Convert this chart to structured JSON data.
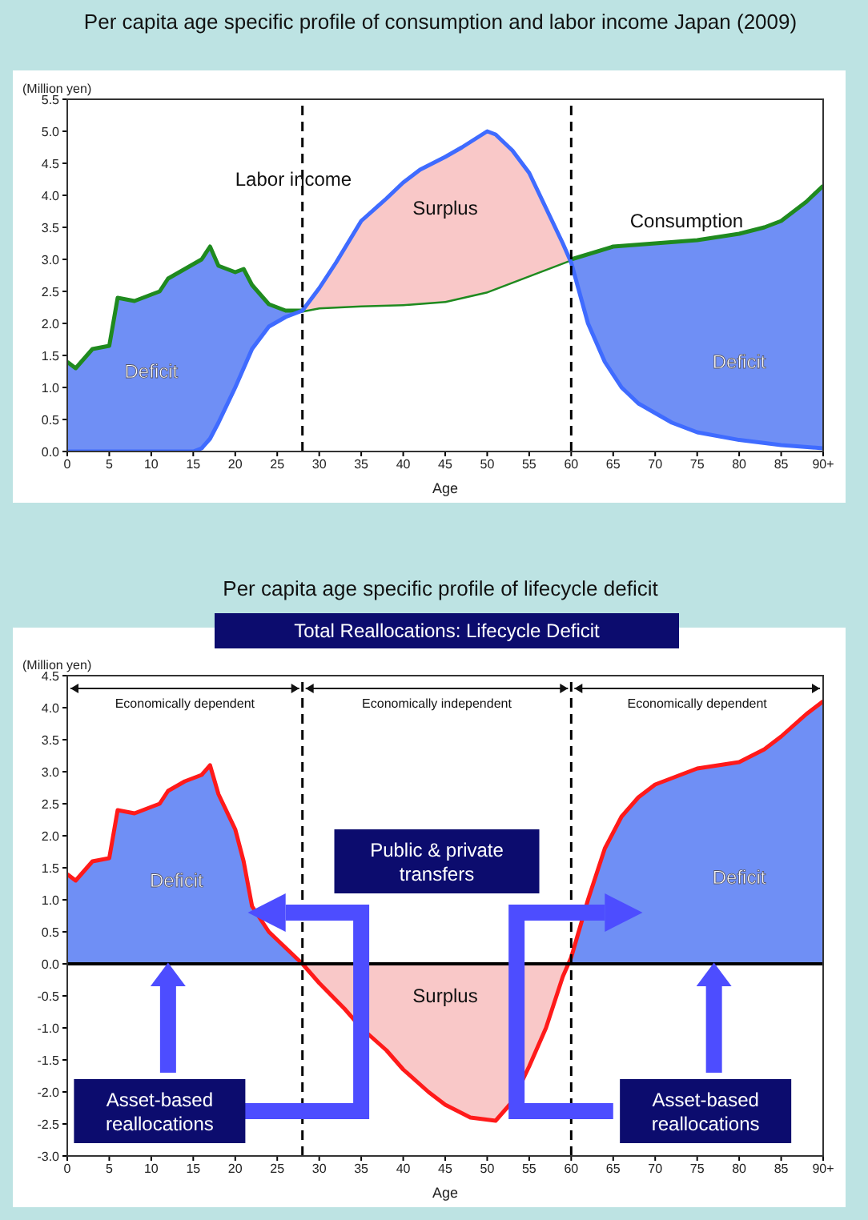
{
  "chart_data": [
    {
      "type": "area",
      "title": "Per capita age specific profile of consumption  and labor income Japan (2009)",
      "ylabel": "(Million yen)",
      "xlabel": "Age",
      "xlim": [
        0,
        90
      ],
      "xticks": [
        0,
        5,
        10,
        15,
        20,
        25,
        30,
        35,
        40,
        45,
        50,
        55,
        60,
        65,
        70,
        75,
        80,
        85,
        {
          "value": 90,
          "label": "90+"
        }
      ],
      "ylim": [
        0,
        5.5
      ],
      "yticks": [
        {
          "value": 0,
          "label": "0.0"
        },
        0.5,
        {
          "value": 1,
          "label": "1.0"
        },
        1.5,
        {
          "value": 2,
          "label": "2.0"
        },
        2.5,
        {
          "value": 3,
          "label": "3.0"
        },
        3.5,
        {
          "value": 4,
          "label": "4.0"
        },
        4.5,
        {
          "value": 5,
          "label": "5.0"
        },
        5.5
      ],
      "series": [
        {
          "name": "Labor income",
          "color": "#3f6bff",
          "x": [
            0,
            15,
            16,
            17,
            18,
            20,
            22,
            24,
            26,
            28,
            30,
            32,
            35,
            38,
            40,
            42,
            45,
            47,
            50,
            51,
            53,
            55,
            57,
            59,
            60,
            62,
            64,
            66,
            68,
            70,
            72,
            75,
            80,
            85,
            90
          ],
          "values": [
            0,
            0,
            0.05,
            0.2,
            0.45,
            1.0,
            1.6,
            1.95,
            2.1,
            2.2,
            2.55,
            2.95,
            3.6,
            3.95,
            4.2,
            4.4,
            4.6,
            4.75,
            5.0,
            4.95,
            4.7,
            4.35,
            3.8,
            3.25,
            2.95,
            2.0,
            1.4,
            1.0,
            0.75,
            0.6,
            0.45,
            0.3,
            0.18,
            0.1,
            0.05
          ]
        },
        {
          "name": "Consumption",
          "color": "#1f8a1f",
          "x": [
            0,
            1,
            3,
            5,
            6,
            8,
            10,
            11,
            12,
            14,
            16,
            17,
            18,
            20,
            21,
            22,
            24,
            26,
            28,
            30,
            35,
            40,
            45,
            50,
            55,
            60,
            65,
            70,
            75,
            80,
            83,
            85,
            88,
            90
          ],
          "values": [
            1.4,
            1.3,
            1.6,
            1.65,
            2.4,
            2.35,
            2.45,
            2.5,
            2.7,
            2.85,
            3.0,
            3.2,
            2.9,
            2.8,
            2.85,
            2.6,
            2.3,
            2.2,
            2.2,
            2.25,
            2.28,
            2.3,
            2.35,
            2.5,
            2.75,
            3.0,
            3.2,
            3.25,
            3.3,
            3.4,
            3.5,
            3.6,
            3.9,
            4.15
          ]
        }
      ],
      "ref_lines": [
        {
          "axis": "x",
          "value": 28,
          "color": "#000000",
          "line_style": "dashed"
        },
        {
          "axis": "x",
          "value": 60,
          "color": "#000000",
          "line_style": "dashed"
        }
      ],
      "annotations": [
        "Surplus",
        "Deficit",
        "Deficit"
      ]
    },
    {
      "type": "area",
      "title": "Per capita age specific profile of lifecycle deficit",
      "subtitle": "Total Reallocations: Lifecycle Deficit",
      "ylabel": "(Million yen)",
      "xlabel": "Age",
      "xlim": [
        0,
        90
      ],
      "xticks": [
        0,
        5,
        10,
        15,
        20,
        25,
        30,
        35,
        40,
        45,
        50,
        55,
        60,
        65,
        70,
        75,
        80,
        85,
        {
          "value": 90,
          "label": "90+"
        }
      ],
      "ylim": [
        -3,
        4.5
      ],
      "yticks": [
        {
          "value": -3,
          "label": "-3.0"
        },
        -2.5,
        {
          "value": -2,
          "label": "-2.0"
        },
        -1.5,
        {
          "value": -1,
          "label": "-1.0"
        },
        -0.5,
        {
          "value": 0,
          "label": "0.0"
        },
        0.5,
        {
          "value": 1,
          "label": "1.0"
        },
        1.5,
        {
          "value": 2,
          "label": "2.0"
        },
        2.5,
        {
          "value": 3,
          "label": "3.0"
        },
        3.5,
        {
          "value": 4,
          "label": "4.0"
        },
        4.5
      ],
      "series": [
        {
          "color": "#ff1a1a",
          "x": [
            0,
            1,
            3,
            5,
            6,
            8,
            10,
            11,
            12,
            14,
            16,
            17,
            18,
            20,
            21,
            22,
            24,
            26,
            28,
            30,
            33,
            35,
            38,
            40,
            43,
            45,
            48,
            51,
            53,
            55,
            57,
            59,
            60,
            62,
            64,
            66,
            68,
            70,
            75,
            80,
            83,
            85,
            88,
            90
          ],
          "values": [
            1.4,
            1.3,
            1.6,
            1.65,
            2.4,
            2.35,
            2.45,
            2.5,
            2.7,
            2.85,
            2.95,
            3.1,
            2.65,
            2.1,
            1.6,
            0.9,
            0.5,
            0.25,
            0.0,
            -0.3,
            -0.7,
            -1.0,
            -1.35,
            -1.65,
            -2.0,
            -2.2,
            -2.4,
            -2.45,
            -2.15,
            -1.6,
            -1.0,
            -0.2,
            0.1,
            1.0,
            1.8,
            2.3,
            2.6,
            2.8,
            3.05,
            3.15,
            3.35,
            3.55,
            3.9,
            4.1
          ]
        }
      ],
      "ref_lines": [
        {
          "axis": "x",
          "value": 28,
          "color": "#000000",
          "line_style": "dashed"
        },
        {
          "axis": "x",
          "value": 60,
          "color": "#000000",
          "line_style": "dashed"
        },
        {
          "axis": "y",
          "value": 0,
          "color": "#000000",
          "line_style": "solid"
        }
      ],
      "annotations": [
        "Economically dependent",
        "Economically independent",
        "Economically dependent",
        "Public & private transfers",
        "Asset-based reallocations",
        "Asset-based reallocations",
        "Surplus",
        "Deficit",
        "Deficit"
      ]
    }
  ]
}
